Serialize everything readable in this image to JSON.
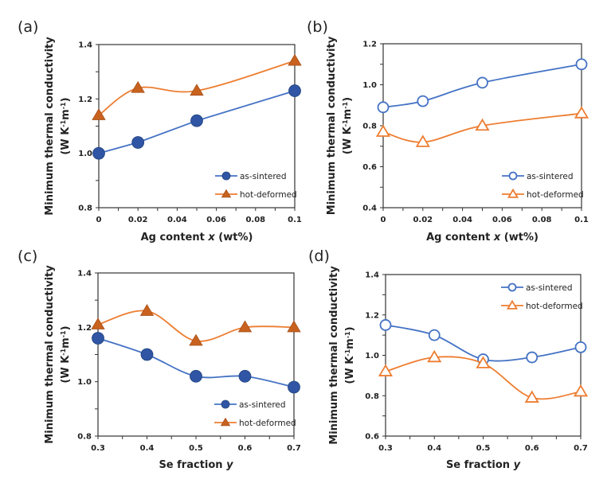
{
  "colors": {
    "as_sintered": "#4472C4",
    "as_sintered_fill": "#2F55A4",
    "hot_deformed": "#ED7D31",
    "hot_deformed_fill": "#C8621E",
    "axis": "#333333"
  },
  "chart_data": [
    {
      "id": "a",
      "panel_label": "(a)",
      "type": "line",
      "title": "",
      "xlabel": "Ag content x (wt%)",
      "xlabel_parts": [
        "Ag content ",
        "x",
        " (wt%)"
      ],
      "ylabel": "Minimum thermal conductivity (W K-1m-1)",
      "ylabel_line1": "Minimum thermal conductivity",
      "xlim": [
        0,
        0.1
      ],
      "ylim": [
        0.8,
        1.4
      ],
      "xticks": [
        0,
        0.02,
        0.04,
        0.06,
        0.08,
        0.1
      ],
      "xtick_labels": [
        "0",
        "0.02",
        "0.04",
        "0.06",
        "0.08",
        "0.1"
      ],
      "yticks": [
        0.8,
        1.0,
        1.2,
        1.4
      ],
      "ytick_labels": [
        "0.8",
        "1.0",
        "1.2",
        "1.4"
      ],
      "y_minor_step": 0.1,
      "x_minor_step": 0.01,
      "legend_position": "bottom-right",
      "marker_style": "filled",
      "series": [
        {
          "name": "as-sintered",
          "marker": "circle",
          "x": [
            0,
            0.02,
            0.05,
            0.1
          ],
          "y": [
            1.0,
            1.04,
            1.12,
            1.23
          ],
          "smooth": false
        },
        {
          "name": "hot-deformed",
          "marker": "triangle",
          "x": [
            0,
            0.02,
            0.05,
            0.1
          ],
          "y": [
            1.14,
            1.24,
            1.23,
            1.34
          ],
          "smooth": true
        }
      ]
    },
    {
      "id": "b",
      "panel_label": "(b)",
      "type": "line",
      "title": "",
      "xlabel": "Ag content x (wt%)",
      "xlabel_parts": [
        "Ag content ",
        "x",
        " (wt%)"
      ],
      "ylabel": "Minimum thermal conductivity (W K-1m-1)",
      "ylabel_line1": "Minimum thermal conductivity",
      "xlim": [
        0,
        0.1
      ],
      "ylim": [
        0.4,
        1.2
      ],
      "xticks": [
        0,
        0.02,
        0.04,
        0.06,
        0.08,
        0.1
      ],
      "xtick_labels": [
        "0",
        "0.02",
        "0.04",
        "0.06",
        "0.08",
        "0.1"
      ],
      "yticks": [
        0.4,
        0.6,
        0.8,
        1.0,
        1.2
      ],
      "ytick_labels": [
        "0.4",
        "0.6",
        "0.8",
        "1.0",
        "1.2"
      ],
      "y_minor_step": 0.1,
      "x_minor_step": 0.01,
      "legend_position": "bottom-right",
      "marker_style": "open",
      "series": [
        {
          "name": "as-sintered",
          "marker": "circle",
          "x": [
            0,
            0.02,
            0.05,
            0.1
          ],
          "y": [
            0.89,
            0.92,
            1.01,
            1.1
          ],
          "smooth": true
        },
        {
          "name": "hot-deformed",
          "marker": "triangle",
          "x": [
            0,
            0.02,
            0.05,
            0.1
          ],
          "y": [
            0.77,
            0.72,
            0.8,
            0.86
          ],
          "smooth": true
        }
      ]
    },
    {
      "id": "c",
      "panel_label": "(c)",
      "type": "line",
      "title": "",
      "xlabel": "Se fraction y",
      "xlabel_parts": [
        "Se fraction ",
        "y",
        ""
      ],
      "ylabel": "Minimum thermal conductivity (W K-1m-1)",
      "ylabel_line1": "Minimum thermal conductivity",
      "xlim": [
        0.3,
        0.7
      ],
      "ylim": [
        0.8,
        1.4
      ],
      "xticks": [
        0.3,
        0.4,
        0.5,
        0.6,
        0.7
      ],
      "xtick_labels": [
        "0.3",
        "0.4",
        "0.5",
        "0.6",
        "0.7"
      ],
      "yticks": [
        0.8,
        1.0,
        1.2,
        1.4
      ],
      "ytick_labels": [
        "0.8",
        "1.0",
        "1.2",
        "1.4"
      ],
      "y_minor_step": 0.1,
      "x_minor_step": 0.05,
      "legend_position": "bottom-right",
      "marker_style": "filled",
      "series": [
        {
          "name": "as-sintered",
          "marker": "circle",
          "x": [
            0.3,
            0.4,
            0.5,
            0.6,
            0.7
          ],
          "y": [
            1.16,
            1.1,
            1.02,
            1.02,
            0.98
          ],
          "smooth": true
        },
        {
          "name": "hot-deformed",
          "marker": "triangle",
          "x": [
            0.3,
            0.4,
            0.5,
            0.6,
            0.7
          ],
          "y": [
            1.21,
            1.26,
            1.15,
            1.2,
            1.2
          ],
          "smooth": true
        }
      ]
    },
    {
      "id": "d",
      "panel_label": "(d)",
      "type": "line",
      "title": "",
      "xlabel": "Se fraction y",
      "xlabel_parts": [
        "Se fraction ",
        "y",
        ""
      ],
      "ylabel": "Minimum thermal conductivity (W K-1m-1)",
      "ylabel_line1": "Minimum thermal conductivity",
      "xlim": [
        0.3,
        0.7
      ],
      "ylim": [
        0.6,
        1.4
      ],
      "xticks": [
        0.3,
        0.4,
        0.5,
        0.6,
        0.7
      ],
      "xtick_labels": [
        "0.3",
        "0.4",
        "0.5",
        "0.6",
        "0.7"
      ],
      "yticks": [
        0.6,
        0.8,
        1.0,
        1.2,
        1.4
      ],
      "ytick_labels": [
        "0.6",
        "0.8",
        "1.0",
        "1.2",
        "1.4"
      ],
      "y_minor_step": 0.1,
      "x_minor_step": 0.05,
      "legend_position": "top-right",
      "marker_style": "open",
      "series": [
        {
          "name": "as-sintered",
          "marker": "circle",
          "x": [
            0.3,
            0.4,
            0.5,
            0.6,
            0.7
          ],
          "y": [
            1.15,
            1.1,
            0.98,
            0.99,
            1.04
          ],
          "smooth": true
        },
        {
          "name": "hot-deformed",
          "marker": "triangle",
          "x": [
            0.3,
            0.4,
            0.5,
            0.6,
            0.7
          ],
          "y": [
            0.92,
            0.99,
            0.96,
            0.79,
            0.82
          ],
          "smooth": true
        }
      ]
    }
  ]
}
